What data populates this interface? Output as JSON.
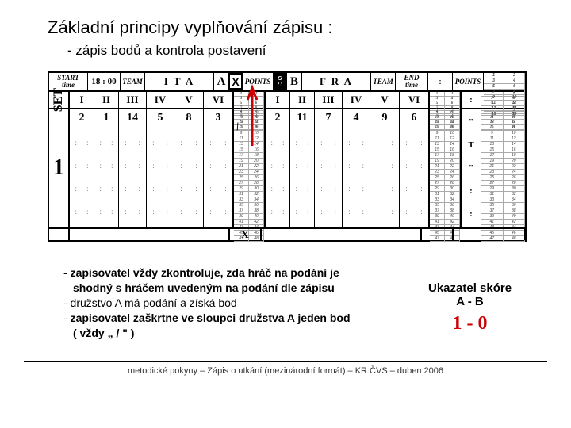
{
  "title": "Základní principy vyplňování zápisu :",
  "subtitle": "- zápis bodů a kontrola postavení",
  "header": {
    "start_label": "START",
    "time_label": "time",
    "time_value": "18 : 00",
    "team_label": "TEAM",
    "team_a": "I   T   A",
    "team_b": "F   R   A",
    "a_letter": "A",
    "b_letter": "B",
    "x_mark": "X",
    "s_label": "S",
    "r_label": "R",
    "points_label": "POINTS",
    "end_label": "END",
    "end_time_label": "time"
  },
  "roman": [
    "I",
    "II",
    "III",
    "IV",
    "V",
    "VI"
  ],
  "set_label": "SET",
  "set_num": "1",
  "players_a": [
    "2",
    "1",
    "14",
    "5",
    "8",
    "3"
  ],
  "players_b": [
    "2",
    "11",
    "7",
    "4",
    "9",
    "6"
  ],
  "slash": "/",
  "x_bottom": "X",
  "t_label": "T",
  "notes": {
    "l1a": "- ",
    "l1b": "zapisovatel vždy zkontroluje, zda hráč na podání je",
    "l2": "shodný s hráčem uvedeným na podání dle zápisu",
    "l3": "- družstvo A má podání a získá bod",
    "l4a": "- ",
    "l4b": "zapisovatel zaškrtne ve sloupci družstva A jeden bod",
    "l5": "( vždy „ / \" )"
  },
  "score": {
    "title": "Ukazatel skóre",
    "ab": "A  -  B",
    "val": "1 - 0"
  },
  "footer": "metodické pokyny – Zápis o utkání (mezinárodní formát) – KR ČVS – duben 2006",
  "colors": {
    "arrow": "#cc0000",
    "score_val": "#cc0000"
  }
}
